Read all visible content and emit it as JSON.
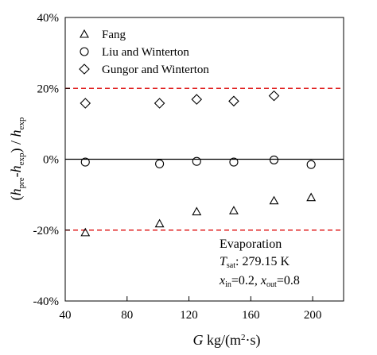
{
  "chart_data": {
    "type": "scatter",
    "xlabel": "G kg/(m²·s)",
    "ylabel": "(h_pre-h_exp) / h_exp",
    "xlim": [
      40,
      220
    ],
    "ylim": [
      -40,
      40
    ],
    "x_ticks": [
      40,
      80,
      120,
      160,
      200
    ],
    "x_tick_labels": [
      "40",
      "80",
      "120",
      "160",
      "200"
    ],
    "y_ticks": [
      40,
      20,
      0,
      -20,
      -40
    ],
    "y_tick_labels": [
      "40%",
      "20%",
      "0%",
      "-20%",
      "-40%"
    ],
    "grid": false,
    "legend_position": "top-left",
    "reference_lines": [
      {
        "y": 20,
        "style": "dashed",
        "color": "#e02020"
      },
      {
        "y": 0,
        "style": "solid",
        "color": "#000000"
      },
      {
        "y": -20,
        "style": "dashed",
        "color": "#e02020"
      }
    ],
    "series": [
      {
        "name": "Fang",
        "marker": "triangle",
        "x": [
          53,
          101,
          125,
          149,
          175,
          199
        ],
        "y": [
          -20.7,
          -18.2,
          -14.8,
          -14.5,
          -11.7,
          -10.8
        ]
      },
      {
        "name": "Liu and Winterton",
        "marker": "circle",
        "x": [
          53,
          101,
          125,
          149,
          175,
          199
        ],
        "y": [
          -0.8,
          -1.3,
          -0.6,
          -0.8,
          -0.2,
          -1.5
        ]
      },
      {
        "name": "Gungor and Winterton",
        "marker": "diamond",
        "x": [
          53,
          101,
          125,
          149,
          175
        ],
        "y": [
          15.8,
          15.8,
          16.9,
          16.4,
          17.9
        ]
      }
    ],
    "annotation": {
      "line1": "Evaporation",
      "line2_sym": "T",
      "line2_sub": "sat",
      "line2_rest": ":  279.15 K",
      "line3_a_sym": "x",
      "line3_a_sub": "in",
      "line3_a_val": "=0.2,  ",
      "line3_b_sym": "x",
      "line3_b_sub": "out",
      "line3_b_val": "=0.8"
    },
    "ylabel_parts": {
      "open": "(",
      "h1": "h",
      "h1_sub": "pre",
      "dash": "-",
      "h2": "h",
      "h2_sub": "exp",
      "mid": ") / ",
      "h3": "h",
      "h3_sub": "exp"
    },
    "xlabel_parts": {
      "sym": "G",
      "unit_a": " kg/(m",
      "unit_sup": "2",
      "unit_b": "·s)"
    }
  }
}
